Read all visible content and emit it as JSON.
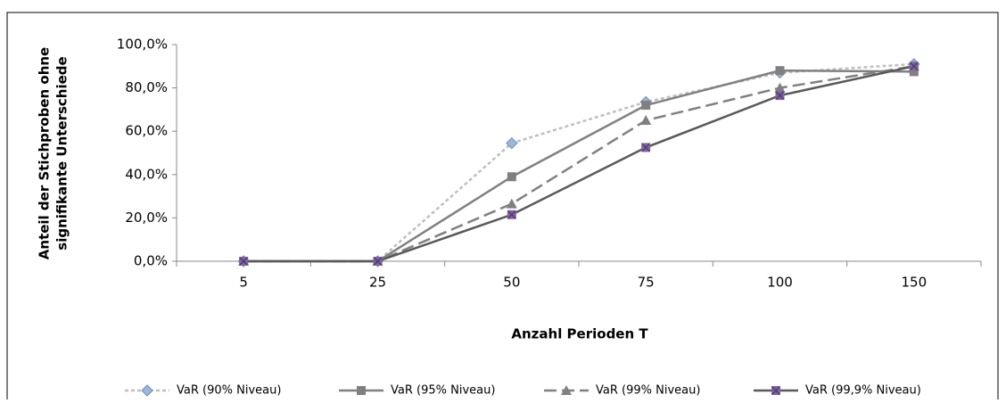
{
  "chart_data": {
    "type": "line",
    "x_label": "Anzahl Perioden T",
    "y_label": [
      "Anteil der Stichproben ohne",
      "signifikante Unterschiede"
    ],
    "categories": [
      "5",
      "25",
      "50",
      "75",
      "100",
      "150"
    ],
    "ylim": [
      0,
      100
    ],
    "yticks": [
      {
        "value": 0,
        "label": "0,0%"
      },
      {
        "value": 20,
        "label": "20,0%"
      },
      {
        "value": 40,
        "label": "40,0%"
      },
      {
        "value": 60,
        "label": "60,0%"
      },
      {
        "value": 80,
        "label": "80,0%"
      },
      {
        "value": 100,
        "label": "100,0%"
      }
    ],
    "grid": false,
    "legend": "bottom",
    "series": [
      {
        "name": "VaR (90% Niveau)",
        "color": "#bfbfbf",
        "marker_color": "#9bb7d9",
        "marker": "diamond",
        "dash": "4,3",
        "values": [
          0,
          0,
          54.5,
          73.5,
          87,
          91
        ]
      },
      {
        "name": "VaR (95% Niveau)",
        "color": "#808080",
        "marker_color": "#808080",
        "marker": "square",
        "dash": "none",
        "values": [
          0,
          0,
          39,
          72,
          88,
          87.5
        ]
      },
      {
        "name": "VaR (99% Niveau)",
        "color": "#808080",
        "marker_color": "#808080",
        "marker": "triangle",
        "dash": "14,6",
        "values": [
          0,
          0,
          26.5,
          65,
          80,
          90
        ]
      },
      {
        "name": "VaR (99,9% Niveau)",
        "color": "#595959",
        "marker_color": "#8064a2",
        "marker": "xsquare",
        "dash": "none",
        "values": [
          0,
          0,
          21.5,
          52.5,
          76.5,
          90
        ]
      }
    ]
  }
}
